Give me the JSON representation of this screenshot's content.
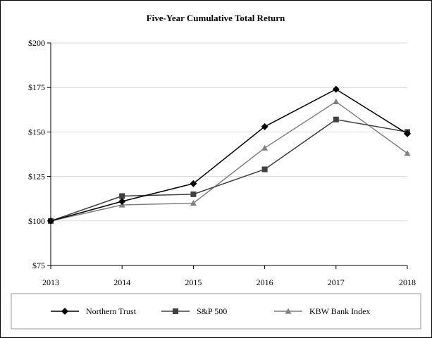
{
  "chart_data": {
    "type": "line",
    "title": "Five-Year Cumulative Total Return",
    "xlabel": "",
    "ylabel": "",
    "x": [
      "2013",
      "2014",
      "2015",
      "2016",
      "2017",
      "2018"
    ],
    "ylim": [
      75,
      200
    ],
    "yticks": [
      75,
      100,
      125,
      150,
      175,
      200
    ],
    "ytick_labels": [
      "$75",
      "$100",
      "$125",
      "$150",
      "$175",
      "$200"
    ],
    "grid": "horizontal",
    "legend_position": "bottom",
    "series": [
      {
        "name": "Northern Trust",
        "values": [
          100,
          111,
          121,
          153,
          174,
          149
        ],
        "color": "#000000",
        "marker": "diamond"
      },
      {
        "name": "S&P 500",
        "values": [
          100,
          114,
          115,
          129,
          157,
          150
        ],
        "color": "#404040",
        "marker": "square"
      },
      {
        "name": "KBW Bank Index",
        "values": [
          100,
          109,
          110,
          141,
          167,
          138
        ],
        "color": "#808080",
        "marker": "triangle"
      }
    ]
  }
}
